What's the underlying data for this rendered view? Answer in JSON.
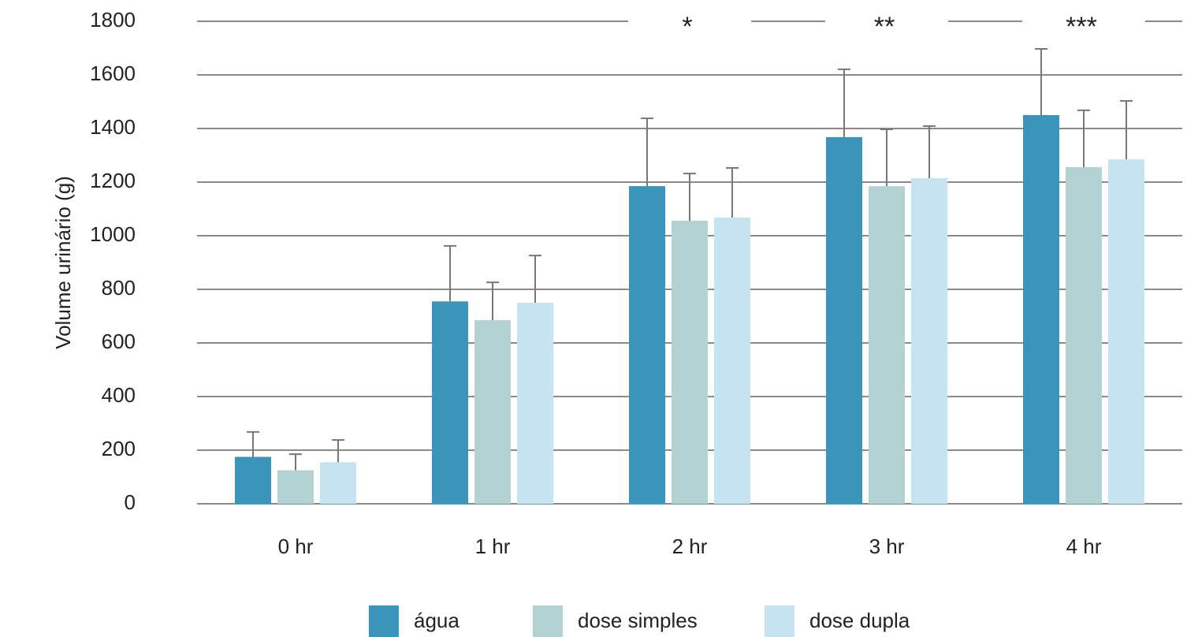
{
  "chart_data": {
    "type": "bar",
    "y_label": "Volume urinário (g)",
    "categories": [
      "0 hr",
      "1 hr",
      "2 hr",
      "3 hr",
      "4 hr"
    ],
    "series": [
      {
        "name": "água",
        "color": "#3d94bb",
        "values": [
          175,
          755,
          1185,
          1368,
          1450
        ],
        "errors": [
          93,
          207,
          253,
          253,
          247
        ]
      },
      {
        "name": "dose simples",
        "color": "#b3d3d2",
        "values": [
          125,
          685,
          1056,
          1185,
          1256
        ],
        "errors": [
          60,
          141,
          176,
          212,
          212
        ]
      },
      {
        "name": "dose dupla",
        "color": "#c6e3ef",
        "values": [
          155,
          750,
          1068,
          1215,
          1285
        ],
        "errors": [
          83,
          176,
          185,
          194,
          218
        ]
      }
    ],
    "annotations": [
      {
        "text": "*",
        "category": "2 hr"
      },
      {
        "text": "**",
        "category": "3 hr"
      },
      {
        "text": "***",
        "category": "4 hr"
      }
    ],
    "ylim": [
      0,
      1800
    ],
    "yticks": [
      0,
      200,
      400,
      600,
      800,
      1000,
      1200,
      1400,
      1600,
      1800
    ],
    "grid": true,
    "legend": "bottom"
  }
}
